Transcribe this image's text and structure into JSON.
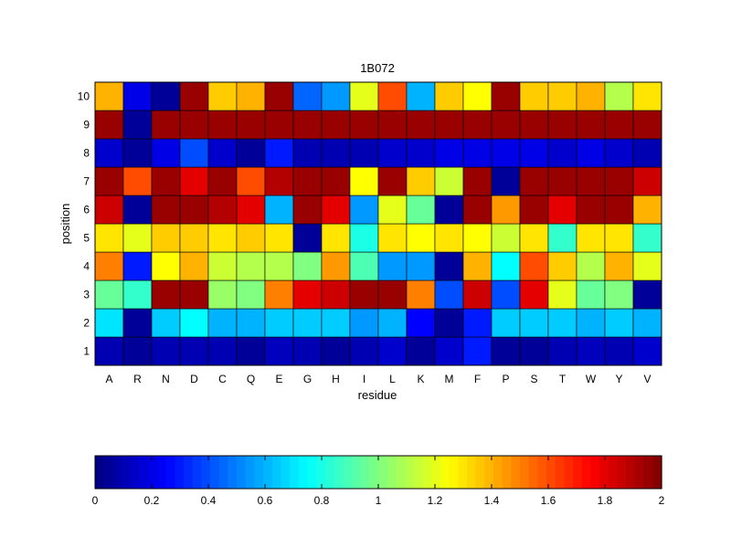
{
  "chart_data": {
    "type": "heatmap",
    "title": "1B072",
    "xlabel": "residue",
    "ylabel": "position",
    "x_categories": [
      "A",
      "R",
      "N",
      "D",
      "C",
      "Q",
      "E",
      "G",
      "H",
      "I",
      "L",
      "K",
      "M",
      "F",
      "P",
      "S",
      "T",
      "W",
      "Y",
      "V"
    ],
    "y_categories": [
      "1",
      "2",
      "3",
      "4",
      "5",
      "6",
      "7",
      "8",
      "9",
      "10"
    ],
    "values": [
      [
        0.1,
        0.05,
        0.1,
        0.1,
        0.1,
        0.05,
        0.12,
        0.1,
        0.05,
        0.1,
        0.15,
        0.05,
        0.15,
        0.3,
        0.05,
        0.05,
        0.1,
        0.12,
        0.1,
        0.15
      ],
      [
        0.7,
        0.05,
        0.65,
        0.75,
        0.6,
        0.6,
        0.65,
        0.65,
        0.65,
        0.55,
        0.6,
        0.25,
        0.05,
        0.3,
        0.65,
        0.65,
        0.65,
        0.6,
        0.65,
        0.6
      ],
      [
        0.95,
        0.85,
        1.95,
        1.95,
        1.05,
        1.0,
        1.5,
        1.8,
        1.85,
        1.95,
        1.95,
        1.5,
        0.4,
        1.85,
        0.4,
        1.8,
        1.2,
        0.95,
        1.0,
        0.05
      ],
      [
        1.5,
        0.3,
        1.25,
        1.4,
        1.15,
        1.1,
        1.1,
        1.0,
        1.45,
        0.9,
        0.55,
        0.55,
        0.05,
        1.4,
        0.75,
        1.6,
        1.35,
        1.1,
        1.4,
        1.2
      ],
      [
        1.3,
        1.2,
        1.35,
        1.35,
        1.3,
        1.35,
        1.3,
        0.05,
        1.3,
        0.8,
        1.3,
        1.25,
        1.3,
        1.25,
        1.15,
        1.3,
        0.85,
        1.3,
        1.3,
        0.85
      ],
      [
        1.85,
        0.05,
        1.95,
        1.95,
        1.9,
        1.8,
        0.6,
        1.95,
        1.8,
        0.55,
        1.2,
        0.95,
        0.05,
        1.95,
        1.45,
        1.95,
        1.8,
        1.95,
        1.95,
        1.4
      ],
      [
        1.95,
        1.6,
        1.95,
        1.8,
        1.95,
        1.6,
        1.9,
        1.95,
        1.95,
        1.25,
        1.95,
        1.35,
        1.15,
        1.95,
        0.05,
        1.95,
        1.95,
        1.95,
        1.95,
        1.85
      ],
      [
        0.15,
        0.05,
        0.2,
        0.4,
        0.15,
        0.05,
        0.3,
        0.1,
        0.1,
        0.1,
        0.15,
        0.15,
        0.2,
        0.2,
        0.2,
        0.2,
        0.15,
        0.2,
        0.15,
        0.1
      ],
      [
        1.95,
        0.05,
        1.95,
        1.95,
        1.95,
        1.95,
        1.95,
        1.95,
        1.95,
        1.95,
        1.95,
        1.95,
        1.95,
        1.95,
        1.95,
        1.95,
        1.95,
        1.95,
        1.95,
        1.95
      ],
      [
        1.4,
        0.2,
        0.05,
        1.95,
        1.35,
        1.4,
        1.95,
        0.45,
        0.55,
        1.2,
        1.6,
        0.6,
        1.35,
        1.25,
        1.95,
        1.35,
        1.35,
        1.4,
        1.1,
        1.3
      ]
    ],
    "colorbar": {
      "range": [
        0,
        2
      ],
      "ticks": [
        "0",
        "0.2",
        "0.4",
        "0.6",
        "0.8",
        "1",
        "1.2",
        "1.4",
        "1.6",
        "1.8",
        "2"
      ],
      "colormap": "jet"
    },
    "grid": true
  }
}
